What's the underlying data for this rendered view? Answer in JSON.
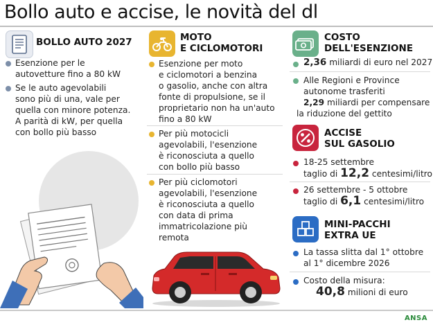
{
  "title": "Bollo auto e accise, le novità del dl",
  "left": {
    "icon": "document-icon",
    "title": "BOLLO AUTO 2027",
    "bullets": [
      {
        "lines": [
          "Esenzione per le",
          "autovetture fino a 80 kW"
        ]
      },
      {
        "lines": [
          "Se le auto agevolabili",
          "sono più di una, vale per",
          "quella con minore potenza.",
          "A parità di kW, per quella",
          "con bollo più basso"
        ]
      }
    ]
  },
  "mid": {
    "icon": "scooter-icon",
    "title_lines": [
      "MOTO",
      "E CICLOMOTORI"
    ],
    "bullets": [
      {
        "lines": [
          "Esenzione per moto",
          "e ciclomotori a benzina",
          "o gasolio, anche con altra",
          "fonte di propulsione, se il",
          "proprietario non ha un'auto",
          "fino a 80 kW"
        ]
      },
      {
        "lines": [
          "Per più motocicli",
          "agevolabili, l'esenzione",
          "è riconosciuta a quello",
          "con bollo più basso"
        ]
      },
      {
        "lines": [
          "Per più ciclomotori",
          "agevolabili, l'esenzione",
          "è riconosciuta a quello",
          "con data di prima",
          "immatricolazione più",
          "remota"
        ]
      }
    ]
  },
  "right": {
    "costo": {
      "icon": "money-icon",
      "title_lines": [
        "COSTO",
        "DELL'ESENZIONE"
      ],
      "b1": {
        "value": "2,36",
        "rest": "miliardi di euro nel 2027"
      },
      "b2": {
        "lines": [
          "Alle Regioni e Province",
          "autonome trasferiti"
        ],
        "value": "2,29",
        "rest": "miliardi per compensare",
        "last": "la riduzione del gettito"
      }
    },
    "accise": {
      "icon": "percent-icon",
      "title_lines": [
        "ACCISE",
        "SUL GASOLIO"
      ],
      "b1": {
        "head": "18-25 settembre",
        "pre": "taglio di",
        "value": "12,2",
        "post": "centesimi/litro"
      },
      "b2": {
        "head": "26 settembre - 5 ottobre",
        "pre": "taglio di",
        "value": "6,1",
        "post": "centesimi/litro"
      }
    },
    "pacchi": {
      "icon": "packages-icon",
      "title_lines": [
        "MINI-PACCHI",
        "EXTRA UE"
      ],
      "b1": {
        "lines": [
          "La tassa slitta dal 1° ottobre",
          "al 1° dicembre 2026"
        ],
        "bold_1": "1° ottobre",
        "bold_2": "1° dicembre 2026"
      },
      "b2": {
        "head": "Costo della misura:",
        "value": "40,8",
        "post": "milioni di euro"
      }
    }
  },
  "logo": "ANSA",
  "colors": {
    "gray": "#7d8fa9",
    "yellow": "#e8b530",
    "green": "#6ab08a",
    "red": "#c8243d",
    "blue": "#2b6cc4",
    "car": "#d42a2a"
  }
}
